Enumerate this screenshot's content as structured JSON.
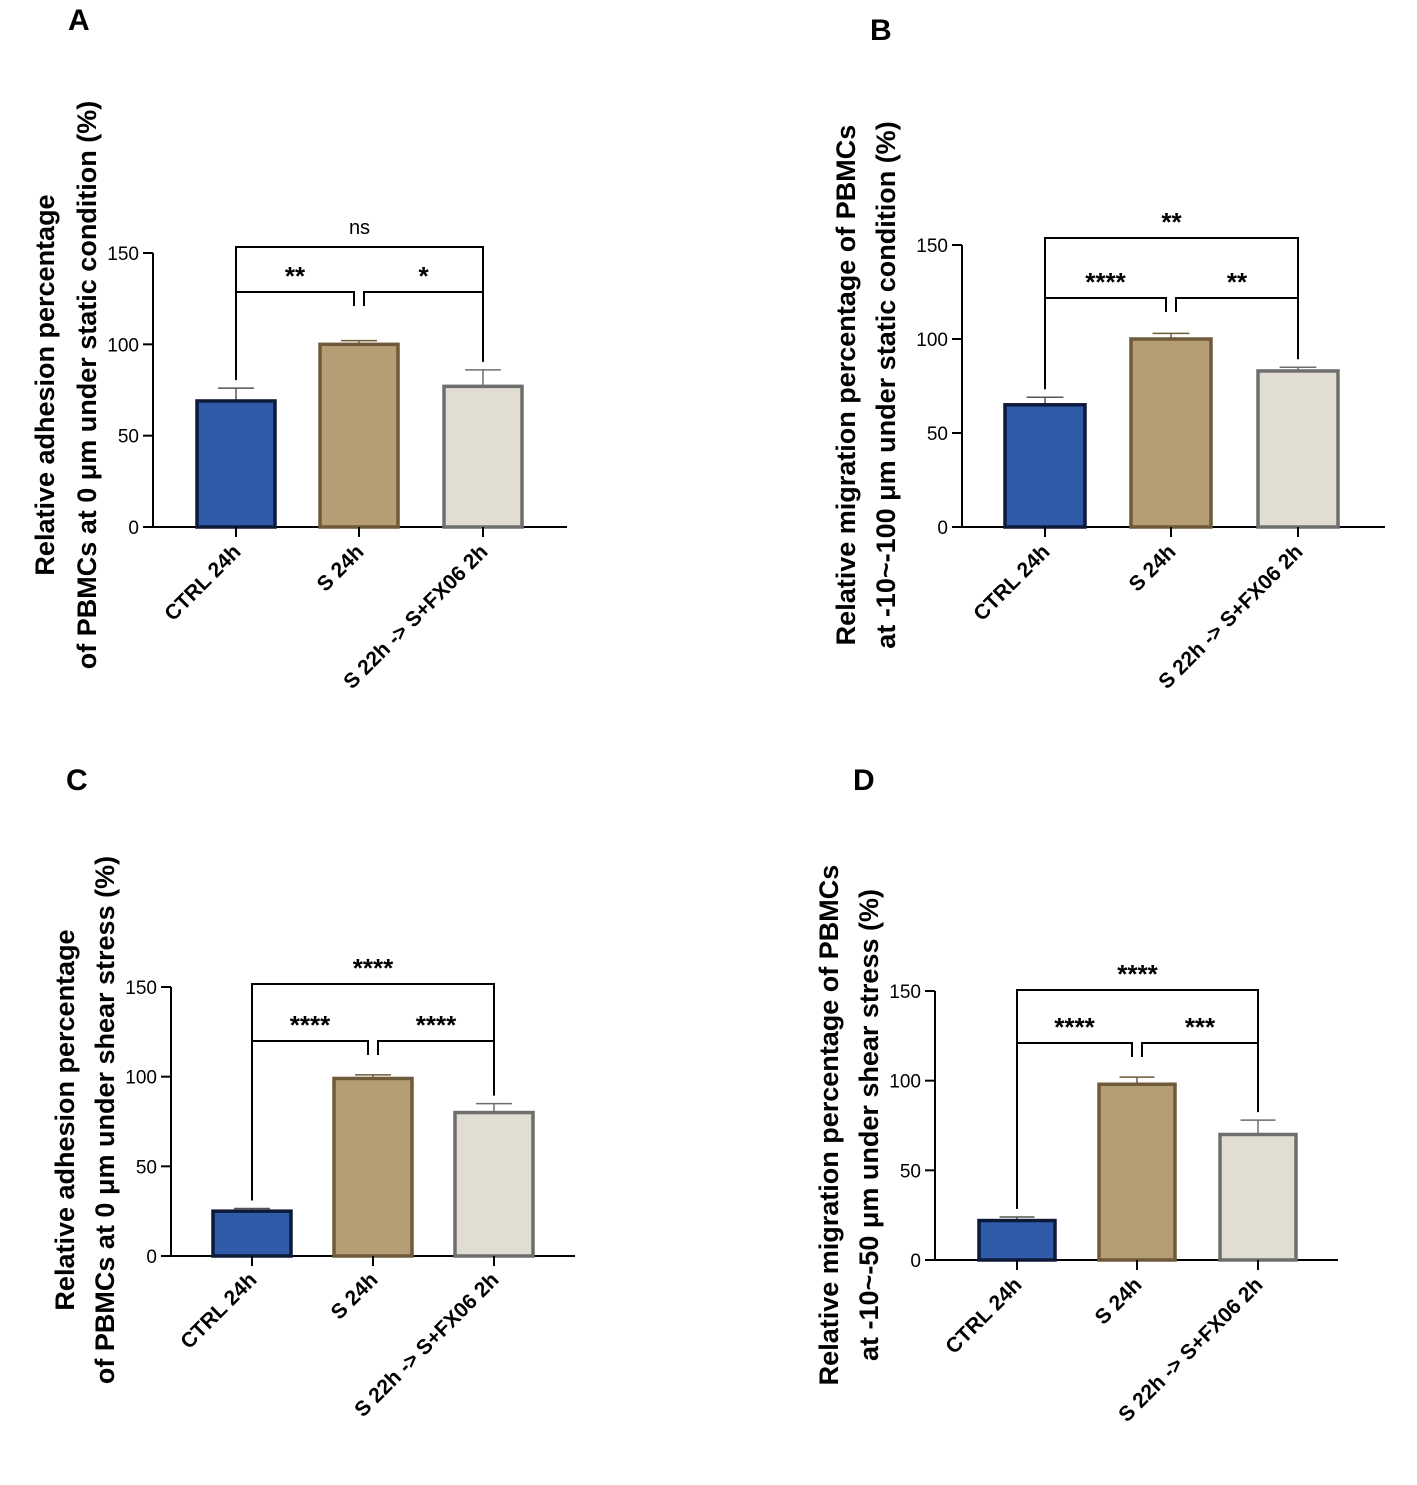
{
  "colors": {
    "ctrl": "#2f5ba8",
    "s24": "#b59e73",
    "fx06": "#e1ddd2",
    "ctrl_edge": "#0e1a3a",
    "s24_edge": "#6f5a3a",
    "fx06_edge": "#6e6e6e"
  },
  "chart_data": [
    {
      "panel": "A",
      "type": "bar",
      "ylabel": [
        "Relative adhesion percentage",
        "of PBMCs at 0 μm under static condition (%)"
      ],
      "categories": [
        "CTRL 24h",
        "S 24h",
        "S 22h -> S+FX06 2h"
      ],
      "values": [
        69,
        100,
        77
      ],
      "errors": [
        7,
        2,
        9
      ],
      "ylim": [
        0,
        150
      ],
      "yticks": [
        0,
        50,
        100,
        150
      ],
      "ytick_labels": [
        "0",
        "50",
        "100",
        "150"
      ],
      "comparisons": [
        {
          "from": 0,
          "to": 1,
          "label": "**",
          "level": 1
        },
        {
          "from": 1,
          "to": 2,
          "label": "*",
          "level": 1
        },
        {
          "from": 0,
          "to": 2,
          "label": "ns",
          "level": 2
        }
      ]
    },
    {
      "panel": "B",
      "type": "bar",
      "ylabel": [
        "Relative migration percentage of PBMCs",
        "at -10~-100 μm under static condition (%)"
      ],
      "categories": [
        "CTRL 24h",
        "S 24h",
        "S 22h -> S+FX06 2h"
      ],
      "values": [
        65,
        100,
        83
      ],
      "errors": [
        4,
        3,
        2
      ],
      "ylim": [
        0,
        150
      ],
      "yticks": [
        0,
        50,
        100,
        150
      ],
      "ytick_labels": [
        "0",
        "50",
        "100",
        "150"
      ],
      "comparisons": [
        {
          "from": 0,
          "to": 1,
          "label": "****",
          "level": 1
        },
        {
          "from": 1,
          "to": 2,
          "label": "**",
          "level": 1
        },
        {
          "from": 0,
          "to": 2,
          "label": "**",
          "level": 2
        }
      ]
    },
    {
      "panel": "C",
      "type": "bar",
      "ylabel": [
        "Relative adhesion percentage",
        "of PBMCs at 0 μm under shear stress (%)"
      ],
      "categories": [
        "CTRL 24h",
        "S 24h",
        "S 22h -> S+FX06 2h"
      ],
      "values": [
        25,
        99,
        80
      ],
      "errors": [
        1.5,
        2,
        5
      ],
      "ylim": [
        0,
        150
      ],
      "yticks": [
        0,
        50,
        100,
        150
      ],
      "ytick_labels": [
        "0",
        "50",
        "100",
        "150"
      ],
      "comparisons": [
        {
          "from": 0,
          "to": 1,
          "label": "****",
          "level": 1
        },
        {
          "from": 1,
          "to": 2,
          "label": "****",
          "level": 1
        },
        {
          "from": 0,
          "to": 2,
          "label": "****",
          "level": 2
        }
      ]
    },
    {
      "panel": "D",
      "type": "bar",
      "ylabel": [
        "Relative migration percentage of PBMCs",
        "at -10~-50 μm under shear stress (%)"
      ],
      "categories": [
        "CTRL 24h",
        "S 24h",
        "S 22h -> S+FX06 2h"
      ],
      "values": [
        22,
        98,
        70
      ],
      "errors": [
        2,
        4,
        8
      ],
      "ylim": [
        0,
        150
      ],
      "yticks": [
        0,
        50,
        100,
        150
      ],
      "ytick_labels": [
        "0",
        "50",
        "100",
        "150"
      ],
      "comparisons": [
        {
          "from": 0,
          "to": 1,
          "label": "****",
          "level": 1
        },
        {
          "from": 1,
          "to": 2,
          "label": "***",
          "level": 1
        },
        {
          "from": 0,
          "to": 2,
          "label": "****",
          "level": 2
        }
      ]
    }
  ]
}
